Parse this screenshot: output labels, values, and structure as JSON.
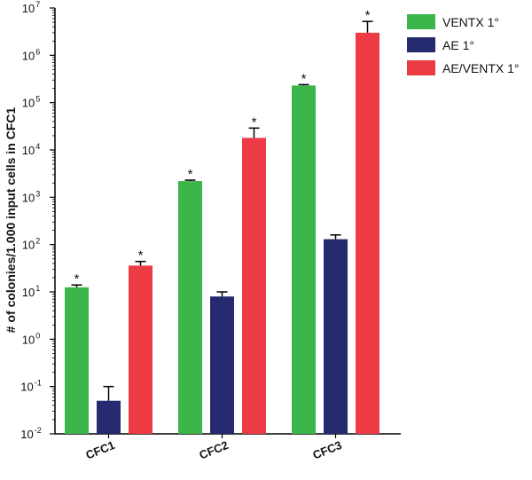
{
  "chart_data": {
    "type": "bar",
    "scale": "log",
    "ylabel": "# of colonies/1.000 input cells in CFC1",
    "xlabel": "",
    "ylim": [
      0.01,
      10000000
    ],
    "y_ticks": [
      {
        "value": 0.01,
        "base": "10",
        "exp": "-2"
      },
      {
        "value": 0.1,
        "base": "10",
        "exp": "-1"
      },
      {
        "value": 1,
        "base": "10",
        "exp": "0"
      },
      {
        "value": 10,
        "base": "10",
        "exp": "1"
      },
      {
        "value": 100,
        "base": "10",
        "exp": "2"
      },
      {
        "value": 1000,
        "base": "10",
        "exp": "3"
      },
      {
        "value": 10000,
        "base": "10",
        "exp": "4"
      },
      {
        "value": 100000,
        "base": "10",
        "exp": "5"
      },
      {
        "value": 1000000,
        "base": "10",
        "exp": "6"
      },
      {
        "value": 10000000,
        "base": "10",
        "exp": "7"
      }
    ],
    "categories": [
      "CFC1",
      "CFC2",
      "CFC3"
    ],
    "series": [
      {
        "name": "VENTX 1°",
        "color": "#3cb54a",
        "values": [
          12.5,
          2200,
          230000
        ],
        "err": [
          14.0,
          2300,
          240000
        ],
        "annotations": [
          "*",
          "*",
          "*"
        ]
      },
      {
        "name": "AE 1°",
        "color": "#262a6e",
        "values": [
          0.05,
          8,
          130
        ],
        "err": [
          0.1,
          10,
          160
        ],
        "annotations": [
          "",
          "",
          ""
        ]
      },
      {
        "name": "AE/VENTX 1°",
        "color": "#ec3b45",
        "values": [
          36,
          18000,
          3000000
        ],
        "err": [
          44,
          29000,
          5200000
        ],
        "annotations": [
          "*",
          "*",
          "*"
        ]
      }
    ],
    "legend_position": "top-right",
    "grid": false
  }
}
